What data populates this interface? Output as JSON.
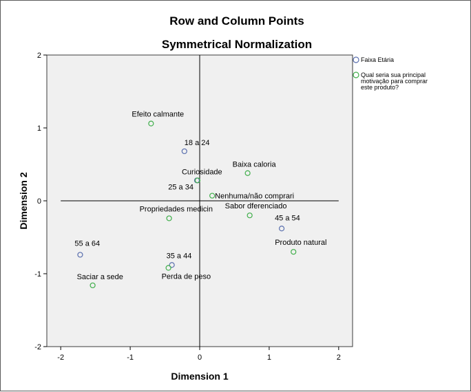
{
  "chart_data": {
    "type": "scatter",
    "title": "Row and Column Points",
    "subtitle": "Symmetrical Normalization",
    "xlabel": "Dimension 1",
    "ylabel": "Dimension 2",
    "xlim": [
      -2.2,
      2.2
    ],
    "ylim": [
      -2,
      2
    ],
    "xticks": [
      -2,
      -1,
      0,
      1,
      2
    ],
    "yticks": [
      -2,
      -1,
      0,
      1,
      2
    ],
    "xtick_labels": [
      "-2",
      "-1",
      "0",
      "1",
      "2"
    ],
    "ytick_labels": [
      "-2",
      "-1",
      "0",
      "1",
      "2"
    ],
    "reference_lines": {
      "x": 0,
      "y": 0,
      "x_range": [
        -2,
        2
      ],
      "y_range": [
        -2,
        2
      ]
    },
    "plot_background": "#f0f0f0",
    "legend_position": "right",
    "series": [
      {
        "name": "Faixa Etária",
        "color": "#5a6fae",
        "marker": "circle-open",
        "points": [
          {
            "label": "18 a 24",
            "x": -0.22,
            "y": 0.68
          },
          {
            "label": "25 a 34",
            "x": -0.04,
            "y": 0.28
          },
          {
            "label": "35 a 44",
            "x": -0.4,
            "y": -0.88
          },
          {
            "label": "45 a 54",
            "x": 1.18,
            "y": -0.38
          },
          {
            "label": "55 a 64",
            "x": -1.72,
            "y": -0.74
          }
        ]
      },
      {
        "name": "Qual seria sua principal motivação para comprar este produto?",
        "legend_lines": [
          "Qual seria sua principal",
          "motivação para comprar",
          "este produto?"
        ],
        "color": "#3fae4a",
        "marker": "circle-open",
        "points": [
          {
            "label": "Efeito calmante",
            "x": -0.7,
            "y": 1.06
          },
          {
            "label": "Curiosidade",
            "x": -0.03,
            "y": 0.28
          },
          {
            "label": "Baixa caloria",
            "x": 0.69,
            "y": 0.38
          },
          {
            "label": "Nenhuma/não comprari",
            "x": 0.18,
            "y": 0.07
          },
          {
            "label": "Propriedades medicin",
            "x": -0.44,
            "y": -0.24
          },
          {
            "label": "Sabor dferenciado",
            "x": 0.72,
            "y": -0.2
          },
          {
            "label": "Produto natural",
            "x": 1.35,
            "y": -0.7
          },
          {
            "label": "Perda de peso",
            "x": -0.45,
            "y": -0.92
          },
          {
            "label": "Saciar a sede",
            "x": -1.54,
            "y": -1.16
          }
        ]
      }
    ]
  }
}
